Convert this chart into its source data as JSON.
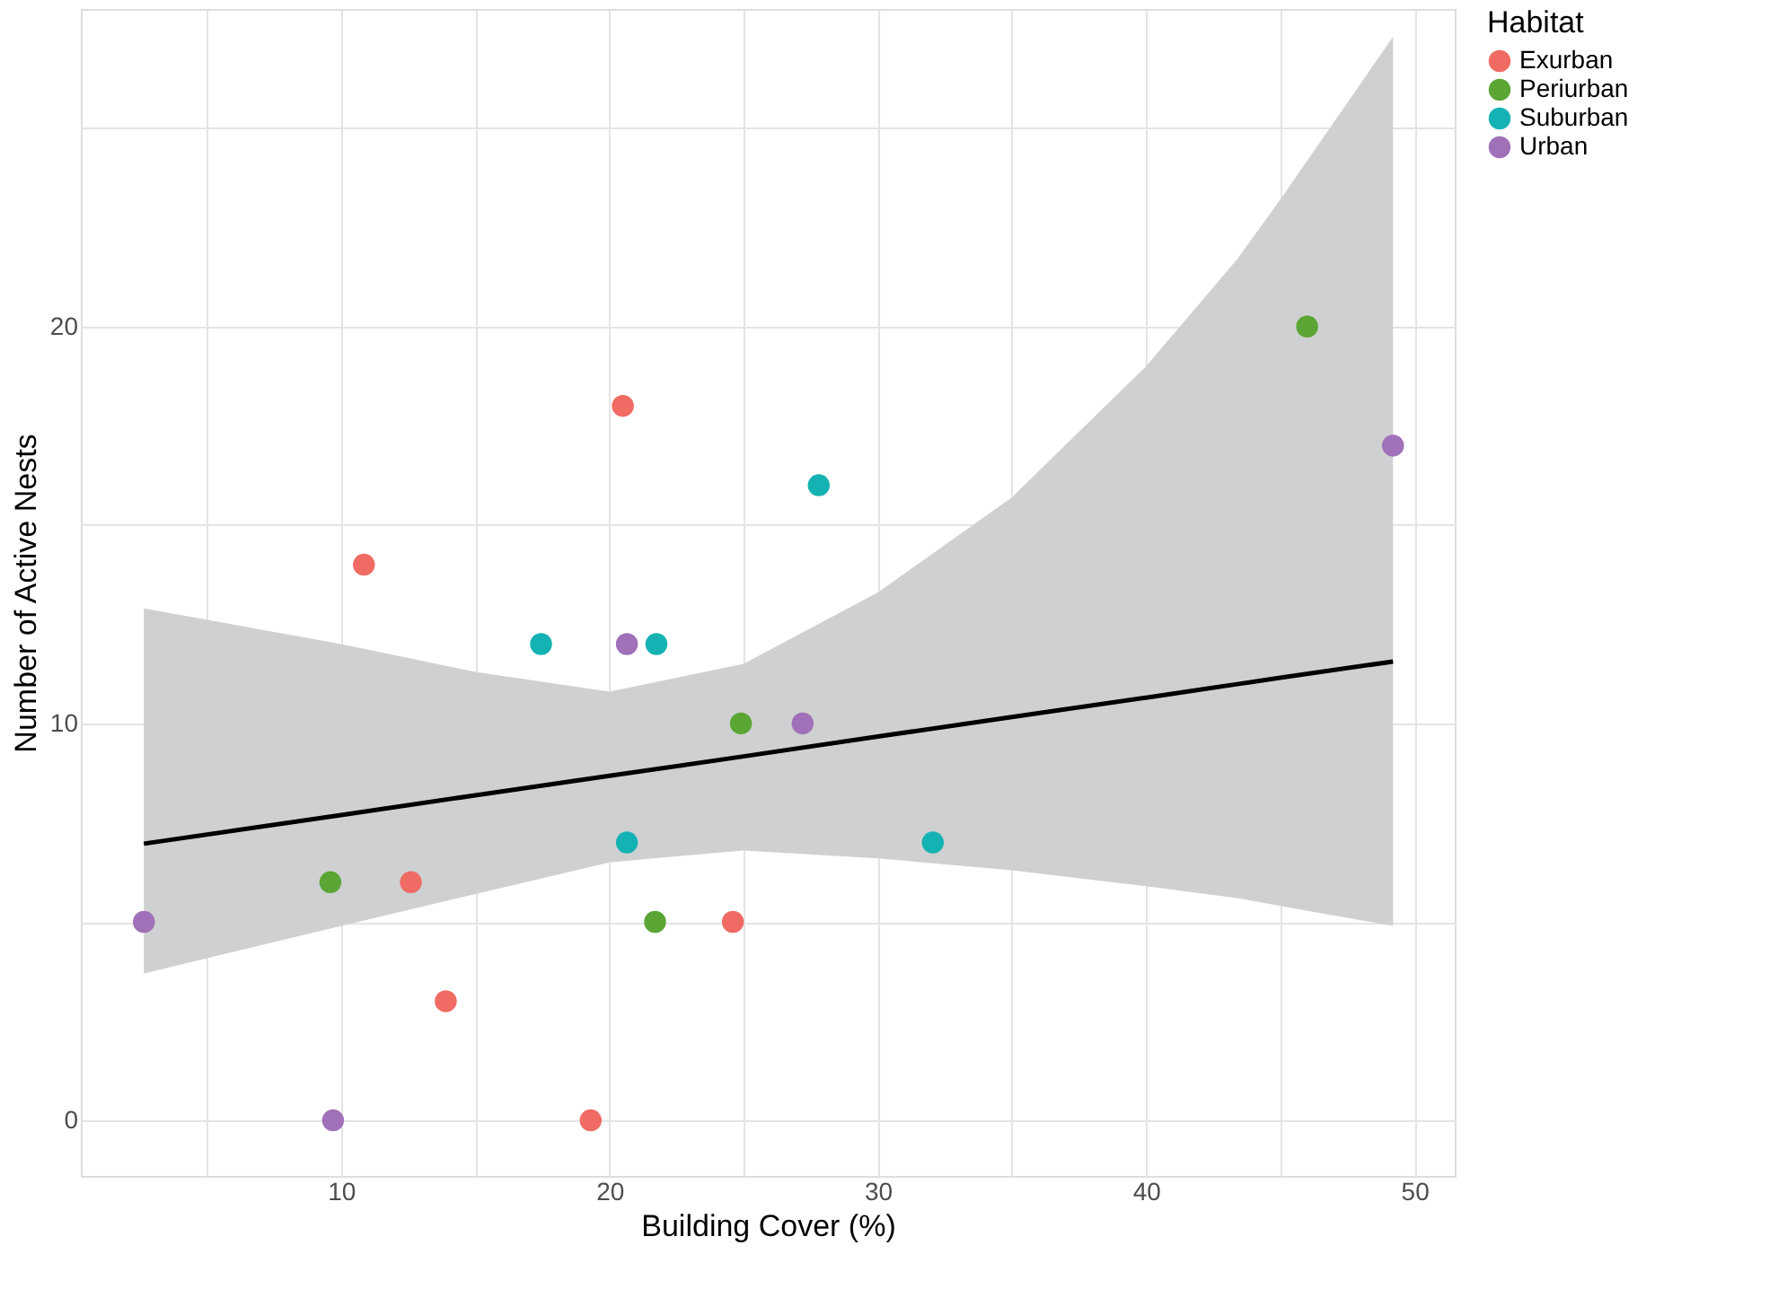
{
  "chart_data": {
    "type": "scatter",
    "xlabel": "Building Cover (%)",
    "ylabel": "Number of Active Nests",
    "legend_title": "Habitat",
    "legend": "right",
    "grid": true,
    "marker": "circle",
    "xlim": [
      0.3,
      51.5
    ],
    "ylim": [
      -1.4,
      28.0
    ],
    "xticks": [
      {
        "value": 5,
        "label": null
      },
      10,
      {
        "value": 15,
        "label": null
      },
      20,
      {
        "value": 25,
        "label": null
      },
      30,
      {
        "value": 35,
        "label": null
      },
      40,
      {
        "value": 45,
        "label": null
      },
      50
    ],
    "yticks": [
      0,
      {
        "value": 5,
        "label": null
      },
      10,
      {
        "value": 15,
        "label": null
      },
      20,
      {
        "value": 25,
        "label": null
      }
    ],
    "series": [
      {
        "name": "Exurban",
        "color": "#ef6b63",
        "x": [
          10.85,
          12.6,
          13.9,
          19.3,
          20.5,
          24.6
        ],
        "values": [
          14,
          6,
          3,
          0,
          18,
          5
        ]
      },
      {
        "name": "Periurban",
        "color": "#5ba535",
        "x": [
          9.6,
          21.7,
          24.9,
          46.0
        ],
        "values": [
          6,
          5,
          10,
          20
        ]
      },
      {
        "name": "Suburban",
        "color": "#15b2b3",
        "x": [
          17.45,
          20.65,
          21.75,
          27.8,
          32.05
        ],
        "values": [
          12,
          7,
          12,
          16,
          7
        ]
      },
      {
        "name": "Urban",
        "color": "#a070b8",
        "x": [
          2.65,
          9.7,
          20.65,
          27.2,
          49.2
        ],
        "values": [
          5,
          0,
          12,
          10,
          17
        ]
      },
      {
        "type": "line",
        "color": "#000000",
        "line_style": "solid",
        "marker": "none",
        "x": [
          2.65,
          10,
          15,
          20,
          25,
          30,
          35,
          40,
          43.4,
          45,
          49.2
        ],
        "values": [
          6.97,
          7.69,
          8.19,
          8.68,
          9.17,
          9.67,
          10.16,
          10.65,
          10.99,
          11.15,
          11.56
        ],
        "lower": [
          3.7,
          4.9,
          5.7,
          6.5,
          6.8,
          6.6,
          6.3,
          5.9,
          5.6,
          5.4,
          4.9
        ],
        "upper": [
          12.9,
          12.0,
          11.3,
          10.8,
          11.5,
          13.3,
          15.7,
          19.0,
          21.7,
          23.2,
          27.3
        ]
      }
    ]
  }
}
